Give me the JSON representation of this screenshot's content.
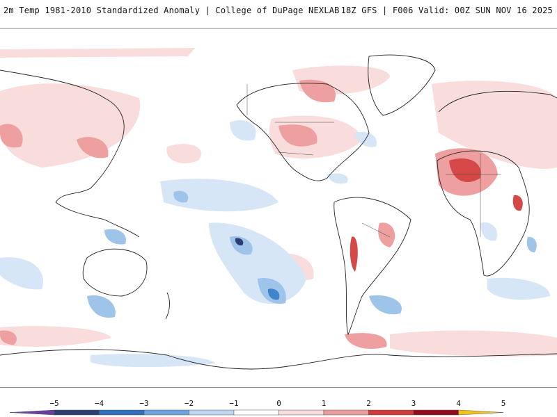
{
  "header": {
    "left_title": "2m Temp 1981-2010 Standardized Anomaly | College of DuPage NEXLAB",
    "right_title": "18Z GFS | F006 Valid: 00Z SUN NOV 16 2025"
  },
  "colorbar": {
    "ticks": [
      "−5",
      "−4",
      "−3",
      "−2",
      "−1",
      "0",
      "1",
      "2",
      "3",
      "4",
      "5"
    ],
    "bins": [
      {
        "color": "#6a3fa0"
      },
      {
        "color": "#2c3f73"
      },
      {
        "color": "#2f6fbd"
      },
      {
        "color": "#6aa3de"
      },
      {
        "color": "#bcd6f1"
      },
      {
        "color": "#ffffff"
      },
      {
        "color": "#f7dcdc"
      },
      {
        "color": "#e99a9a"
      },
      {
        "color": "#cf3b3b"
      },
      {
        "color": "#8f0d1d"
      },
      {
        "color": "#f6c21a"
      }
    ]
  },
  "map_colors": {
    "warm_light": "#f9dcdc",
    "warm_mid": "#ee9f9f",
    "warm_strong": "#d64848",
    "warm_extreme": "#9c1424",
    "cold_light": "#d6e6f7",
    "cold_mid": "#9fc4ea",
    "cold_strong": "#3f84cc",
    "cold_extreme": "#2a3d75",
    "coast": "#222222",
    "border": "#444444"
  }
}
